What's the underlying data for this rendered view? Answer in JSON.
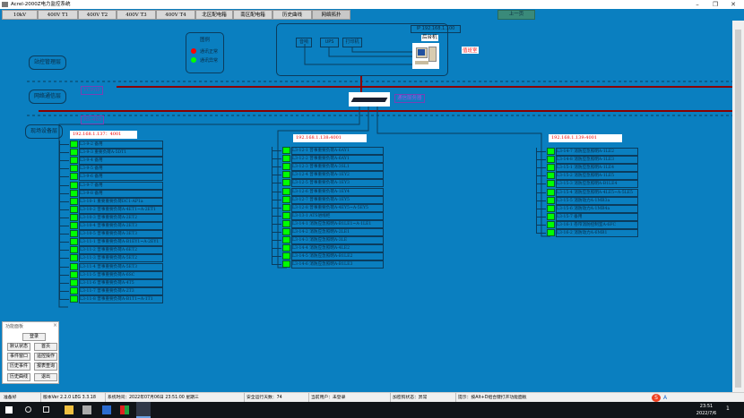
{
  "window": {
    "title": "Acrel-2000Z电力监控系统",
    "minimize": "–",
    "restore": "❐",
    "close": "✕"
  },
  "tabs": [
    "10kV",
    "400V T1",
    "400V T2",
    "400V T3",
    "400V T4",
    "北区配电箱",
    "南区配电箱",
    "历史曲线",
    "网络拓扑"
  ],
  "prev_page": "上一页",
  "layers": {
    "station": "站控管理层",
    "network": "网络通信层",
    "field": "现场设备层"
  },
  "bus": {
    "tcp": "TCP/IP",
    "rs485": "RS-485"
  },
  "legend": {
    "title": "图例",
    "normal": "通讯正常",
    "abnormal": "通讯异常",
    "normal_color": "#ff0000",
    "abnormal_color": "#00ff00"
  },
  "server": {
    "ip": "IP 192.168.1.100",
    "host": "后台机",
    "room": "值班室",
    "speaker": "音响",
    "ups": "UPS",
    "printer": "打印机"
  },
  "switch_label": "通信服务器",
  "status_color": "#00ff00",
  "gateways": [
    {
      "ip": "192.168.1.137：4001",
      "devices": [
        "L3-9-2 备用",
        "L3-9-3 重要负荷A-5DT1",
        "L3-9-4 备用",
        "L3-9-5 备用",
        "L3-9-6 备用",
        "L3-9-7 备用",
        "L3-9-8 备用",
        "L3-10-1 重要重要负荷DC1-AP1a",
        "L3-10-2 普事重要负荷A-4ET1~A-2ET1",
        "L3-10-3 普事重要负荷A-2ET2",
        "L3-10-4 普事重要负荷A-2ET3",
        "L3-10-5 普事重要负荷A-3ET3",
        "L3-11-1 普事重要负荷A-B1EY1~A-2EY1",
        "L3-11-2 普事重要负荷A-6ET2",
        "L3-11-3 普事重要负荷A-5ET2",
        "L3-11-4 普事重要负荷A-5ET3",
        "L3-11-5 普事重要负荷A-6SC",
        "L3-11-6 普事重要负荷A-4T5",
        "L3-11-7 普事重要负荷A-2T3",
        "L3-11-8 普事重要负荷A-B1T1~A-1T1"
      ]
    },
    {
      "ip": "192.168.1.138:4001",
      "devices": [
        "L3-12-1 普事重要负荷A-6AY1",
        "L3-12-2 普事重要负荷A-6AY1",
        "L3-12-3 普事重要负荷A-3SL1",
        "L3-12-4 普事重要负荷A-1EY2",
        "L3-12-5 普事重要负荷A-1EY3",
        "L3-12-6 普事重要负荷A-1EY4",
        "L3-12-7 普事重要负荷A-1EY5",
        "L3-12-8 普事重要负荷A-4EY5~A-5EY5",
        "L3-13-1 ATS进线柜",
        "L3-14-1 消防应急照明A-B1LE1~A-1LE1",
        "L3-14-2 消防应急照明A-2LE1",
        "L3-14-3 消防应急照明A-3LE",
        "L3-14-4 消防应急照明A-4LE2",
        "L3-14-5 消防应急照明A-B1LE2",
        "L3-14-6 消防应急照明A-B1LE3"
      ]
    },
    {
      "ip": "192.168.1.139:4001",
      "devices": [
        "L3-14-7 消防应急照明A-1LE2",
        "L3-14-8 消防应急照明A-1LE3",
        "L3-15-1 消防应急照明A-1LE4",
        "L3-15-2 消防应急照明A-1LE5",
        "L3-15-3 消防应急照明A-B1LE4",
        "L3-15-4 消防应急照明A-4LE5~A-5LE5",
        "L3-15-5 消防动力A-1MB3a",
        "L3-15-6 消防动力A-1MB4a",
        "L3-15-7 备用",
        "L3-16-1 卷帘消防控制室A-6FC",
        "L3-16-2 消防动力A-6MB1"
      ]
    }
  ],
  "panel": {
    "title": "功能面板",
    "close": "×",
    "buttons": [
      "登录",
      "默认状态",
      "首页",
      "事件窗口",
      "遥控操作",
      "历史事件",
      "报表查询",
      "历史曲线",
      "退出"
    ]
  },
  "status": {
    "ready": "准备好",
    "version": "版本Ver 2.2.0 LEG 3.3.18",
    "time": "系统时间：2022年07月06日 23:51:00 星期三",
    "days": "安全运行天数：74",
    "user": "当前用户：未登录",
    "dongle": "加密狗状态：异常",
    "hint": "提示：按Alt+D组合键打开功能面板"
  },
  "taskbar": {
    "time": "23:51",
    "date": "2022/7/6",
    "ime": "A",
    "notify": "1"
  }
}
